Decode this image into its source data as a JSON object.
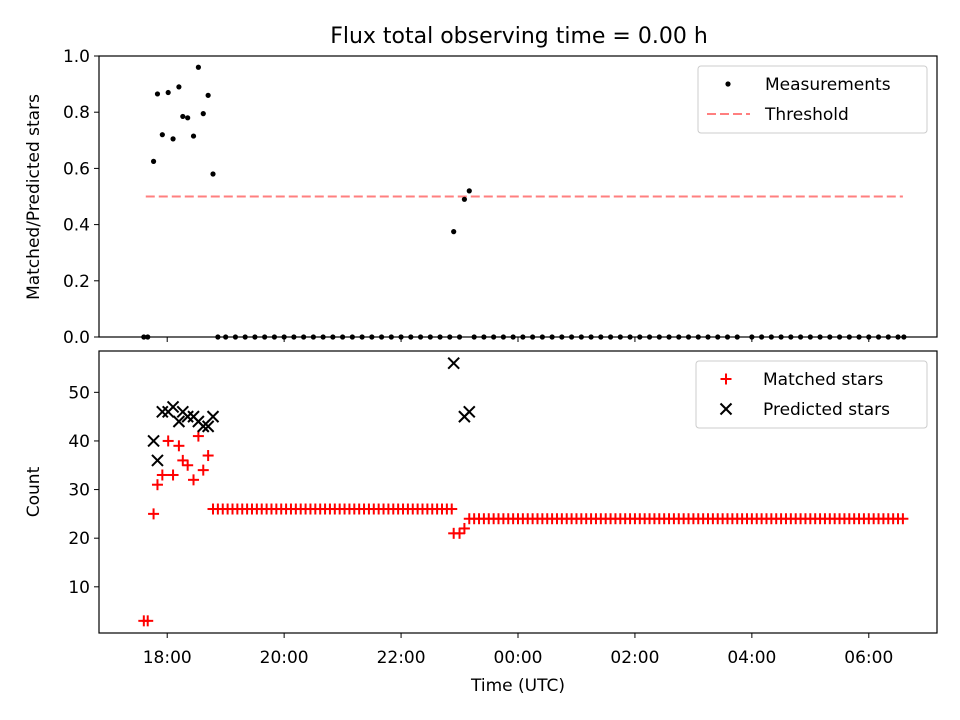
{
  "title": "Flux total observing time = 0.00 h",
  "colors": {
    "measurement": "#000000",
    "threshold": "#ff7f7f",
    "matched": "#ff0000",
    "predicted": "#000000"
  },
  "chart_data": [
    {
      "type": "scatter",
      "title": "Flux total observing time = 0.00 h",
      "ylabel": "Matched/Predicted stars",
      "xlim": [
        "16:50",
        "07:10"
      ],
      "ylim": [
        0,
        1.0
      ],
      "y_ticks": [
        "0.0",
        "0.2",
        "0.4",
        "0.6",
        "0.8",
        "1.0"
      ],
      "legend_position": "top-right",
      "threshold": {
        "name": "Threshold",
        "value": 0.5,
        "x_range": [
          "17:38",
          "06:35"
        ]
      },
      "series": [
        {
          "name": "Measurements",
          "marker": "dot",
          "points": [
            [
              "17:36",
              0
            ],
            [
              "17:40",
              0
            ],
            [
              "17:46",
              0.625
            ],
            [
              "17:50",
              0.865
            ],
            [
              "17:55",
              0.72
            ],
            [
              "18:01",
              0.87
            ],
            [
              "18:06",
              0.705
            ],
            [
              "18:12",
              0.89
            ],
            [
              "18:16",
              0.785
            ],
            [
              "18:21",
              0.78
            ],
            [
              "18:27",
              0.715
            ],
            [
              "18:32",
              0.96
            ],
            [
              "18:37",
              0.795
            ],
            [
              "18:42",
              0.86
            ],
            [
              "18:47",
              0.58
            ],
            [
              "22:54",
              0.375
            ],
            [
              "23:05",
              0.49
            ],
            [
              "23:10",
              0.52
            ],
            [
              "18:52",
              0
            ],
            [
              "19:00",
              0
            ],
            [
              "19:10",
              0
            ],
            [
              "19:20",
              0
            ],
            [
              "19:30",
              0
            ],
            [
              "19:40",
              0
            ],
            [
              "19:50",
              0
            ],
            [
              "20:00",
              0
            ],
            [
              "20:10",
              0
            ],
            [
              "20:20",
              0
            ],
            [
              "20:30",
              0
            ],
            [
              "20:40",
              0
            ],
            [
              "20:50",
              0
            ],
            [
              "21:00",
              0
            ],
            [
              "21:10",
              0
            ],
            [
              "21:20",
              0
            ],
            [
              "21:30",
              0
            ],
            [
              "21:40",
              0
            ],
            [
              "21:50",
              0
            ],
            [
              "22:00",
              0
            ],
            [
              "22:10",
              0
            ],
            [
              "22:20",
              0
            ],
            [
              "22:30",
              0
            ],
            [
              "22:40",
              0
            ],
            [
              "22:50",
              0
            ],
            [
              "23:00",
              0
            ],
            [
              "23:15",
              0
            ],
            [
              "23:25",
              0
            ],
            [
              "23:35",
              0
            ],
            [
              "23:45",
              0
            ],
            [
              "23:55",
              0
            ],
            [
              "00:05",
              0
            ],
            [
              "00:15",
              0
            ],
            [
              "00:25",
              0
            ],
            [
              "00:35",
              0
            ],
            [
              "00:45",
              0
            ],
            [
              "00:55",
              0
            ],
            [
              "01:05",
              0
            ],
            [
              "01:15",
              0
            ],
            [
              "01:25",
              0
            ],
            [
              "01:35",
              0
            ],
            [
              "01:45",
              0
            ],
            [
              "01:55",
              0
            ],
            [
              "02:05",
              0
            ],
            [
              "02:15",
              0
            ],
            [
              "02:25",
              0
            ],
            [
              "02:35",
              0
            ],
            [
              "02:45",
              0
            ],
            [
              "02:55",
              0
            ],
            [
              "03:05",
              0
            ],
            [
              "03:15",
              0
            ],
            [
              "03:25",
              0
            ],
            [
              "03:35",
              0
            ],
            [
              "03:45",
              0
            ],
            [
              "04:00",
              0
            ],
            [
              "04:10",
              0
            ],
            [
              "04:20",
              0
            ],
            [
              "04:30",
              0
            ],
            [
              "04:40",
              0
            ],
            [
              "04:50",
              0
            ],
            [
              "05:00",
              0
            ],
            [
              "05:10",
              0
            ],
            [
              "05:20",
              0
            ],
            [
              "05:30",
              0
            ],
            [
              "05:40",
              0
            ],
            [
              "05:50",
              0
            ],
            [
              "06:00",
              0
            ],
            [
              "06:10",
              0
            ],
            [
              "06:20",
              0
            ],
            [
              "06:30",
              0
            ],
            [
              "06:36",
              0
            ]
          ]
        }
      ]
    },
    {
      "type": "scatter",
      "xlabel": "Time (UTC)",
      "ylabel": "Count",
      "xlim": [
        "16:50",
        "07:10"
      ],
      "ylim": [
        0.5,
        58.5
      ],
      "x_ticks": [
        "18:00",
        "20:00",
        "22:00",
        "00:00",
        "02:00",
        "04:00",
        "06:00"
      ],
      "y_ticks": [
        "10",
        "20",
        "30",
        "40",
        "50"
      ],
      "legend_position": "top-right",
      "series": [
        {
          "name": "Matched stars",
          "marker": "plus",
          "points": [
            [
              "17:36",
              3
            ],
            [
              "17:40",
              3
            ],
            [
              "17:46",
              25
            ],
            [
              "17:50",
              31
            ],
            [
              "17:55",
              33
            ],
            [
              "18:01",
              40
            ],
            [
              "18:06",
              33
            ],
            [
              "18:12",
              39
            ],
            [
              "18:16",
              36
            ],
            [
              "18:21",
              35
            ],
            [
              "18:27",
              32
            ],
            [
              "18:32",
              41
            ],
            [
              "18:37",
              34
            ],
            [
              "18:42",
              37
            ],
            [
              "22:54",
              21
            ],
            [
              "23:00",
              21
            ],
            [
              "23:05",
              22
            ],
            [
              "23:10",
              24
            ]
          ],
          "runs": [
            {
              "from": "18:47",
              "to": "22:52",
              "value": 26
            },
            {
              "from": "23:15",
              "to": "06:36",
              "value": 24
            }
          ]
        },
        {
          "name": "Predicted stars",
          "marker": "x",
          "points": [
            [
              "17:46",
              40
            ],
            [
              "17:50",
              36
            ],
            [
              "17:55",
              46
            ],
            [
              "18:01",
              46
            ],
            [
              "18:06",
              47
            ],
            [
              "18:12",
              44
            ],
            [
              "18:16",
              46
            ],
            [
              "18:21",
              45
            ],
            [
              "18:27",
              45
            ],
            [
              "18:32",
              44
            ],
            [
              "18:37",
              43
            ],
            [
              "18:42",
              43
            ],
            [
              "18:47",
              45
            ],
            [
              "22:54",
              56
            ],
            [
              "23:05",
              45
            ],
            [
              "23:10",
              46
            ]
          ]
        }
      ]
    }
  ]
}
